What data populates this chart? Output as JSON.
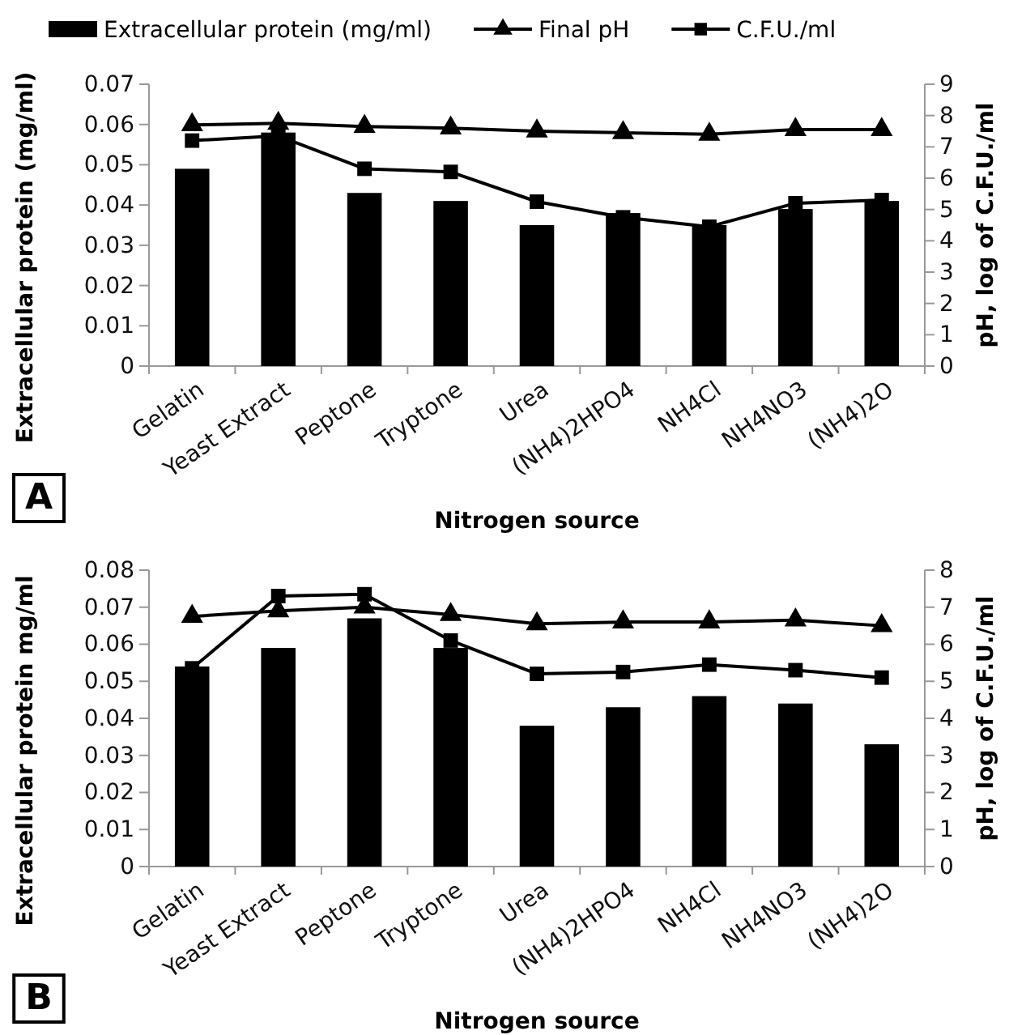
{
  "chart_data": [
    {
      "type": "bar",
      "xlabel": "Nitrogen source",
      "ylabel": "Extracellular protein (mg/ml)",
      "y2label": "pH, log of C.F.U./ml",
      "legend": "top",
      "annotations": [
        "A"
      ],
      "categories": [
        "Gelatin",
        "Yeast Extract",
        "Peptone",
        "Tryptone",
        "Urea",
        "(NH4)2HPO4",
        "NH4Cl",
        "NH4NO3",
        "(NH4)2O"
      ],
      "ylim": [
        0,
        0.07
      ],
      "yticks": [
        {
          "value": 0,
          "label": "0"
        },
        0.01,
        0.02,
        0.03,
        0.04,
        0.05,
        0.06,
        0.07
      ],
      "y2lim": [
        0,
        9
      ],
      "y2ticks": [
        0,
        1,
        2,
        3,
        4,
        5,
        6,
        7,
        8,
        9
      ],
      "series": [
        {
          "name": "Extracellular protein (mg/ml)",
          "color": "#000000",
          "values": [
            0.049,
            0.058,
            0.043,
            0.041,
            0.035,
            0.038,
            0.035,
            0.039,
            0.041
          ]
        },
        {
          "name": "Final pH",
          "type": "line",
          "axis": "y2",
          "marker": "triangle",
          "color": "#000000",
          "values": [
            7.7,
            7.75,
            7.65,
            7.6,
            7.5,
            7.45,
            7.4,
            7.55,
            7.55
          ]
        },
        {
          "name": "C.F.U./ml",
          "type": "line",
          "axis": "y2",
          "marker": "square",
          "color": "#000000",
          "values": [
            7.2,
            7.35,
            6.3,
            6.2,
            5.25,
            4.75,
            4.45,
            5.2,
            5.3
          ]
        }
      ]
    },
    {
      "type": "bar",
      "xlabel": "Nitrogen source",
      "ylabel": "Extracellular protein mg/ml",
      "y2label": "pH, log of C.F.U./ml",
      "annotations": [
        "B"
      ],
      "categories": [
        "Gelatin",
        "Yeast Extract",
        "Peptone",
        "Tryptone",
        "Urea",
        "(NH4)2HPO4",
        "NH4Cl",
        "NH4NO3",
        "(NH4)2O"
      ],
      "ylim": [
        0,
        0.08
      ],
      "yticks": [
        {
          "value": 0,
          "label": "0"
        },
        0.01,
        0.02,
        0.03,
        0.04,
        0.05,
        0.06,
        0.07,
        0.08
      ],
      "y2lim": [
        0,
        8
      ],
      "y2ticks": [
        0,
        1,
        2,
        3,
        4,
        5,
        6,
        7,
        8
      ],
      "series": [
        {
          "color": "#000000",
          "values": [
            0.054,
            0.059,
            0.067,
            0.059,
            0.038,
            0.043,
            0.046,
            0.044,
            0.033
          ]
        },
        {
          "type": "line",
          "axis": "y2",
          "marker": "triangle",
          "color": "#000000",
          "values": [
            6.75,
            6.9,
            7.0,
            6.8,
            6.55,
            6.6,
            6.6,
            6.65,
            6.5
          ]
        },
        {
          "type": "line",
          "axis": "y2",
          "marker": "square",
          "color": "#000000",
          "values": [
            5.35,
            7.3,
            7.35,
            6.1,
            5.2,
            5.25,
            5.45,
            5.3,
            5.1
          ]
        }
      ]
    }
  ]
}
